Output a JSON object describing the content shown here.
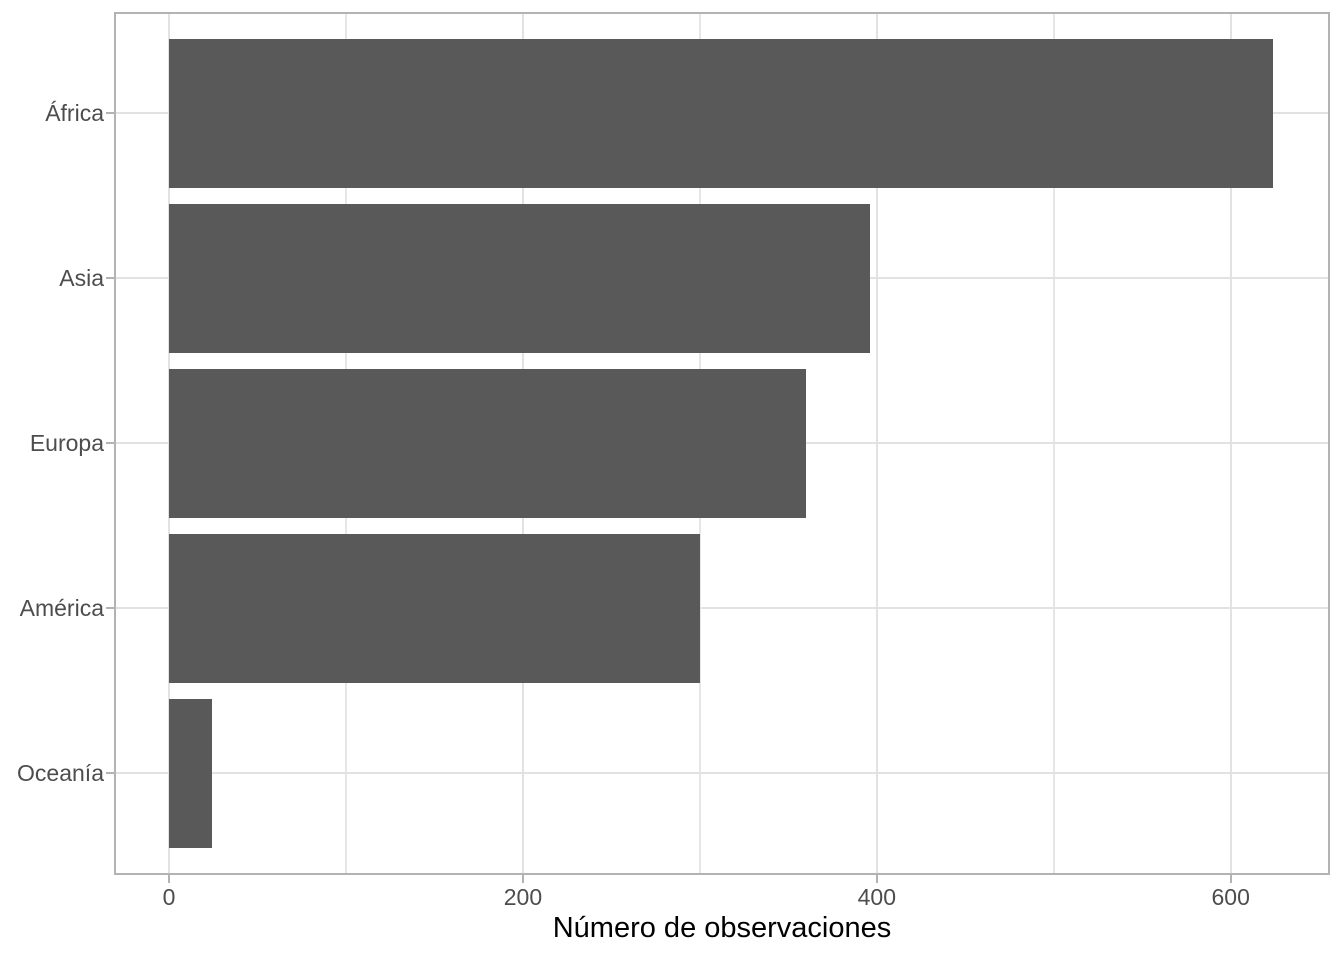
{
  "chart_data": {
    "type": "bar",
    "orientation": "horizontal",
    "title": "",
    "xlabel": "Número de observaciones",
    "ylabel": "",
    "categories": [
      "África",
      "Asia",
      "Europa",
      "América",
      "Oceanía"
    ],
    "values": [
      624,
      396,
      360,
      300,
      24
    ],
    "x_major_ticks": [
      0,
      200,
      400,
      600
    ],
    "x_tick_labels": [
      "0",
      "200",
      "400",
      "600"
    ],
    "x_minor_gridlines": [
      100,
      300,
      500
    ],
    "xlim": [
      -30,
      655
    ],
    "grid": "on",
    "legend": "none"
  },
  "colors": {
    "bar_fill": "#595959",
    "grid_major": "#e2e2e2",
    "grid_minor": "#e6e6e6",
    "panel_border": "#b3b3b3",
    "tick_mark": "#b3b3b3",
    "tick_label": "#4d4d4d",
    "axis_title": "#000000",
    "background": "#ffffff"
  }
}
